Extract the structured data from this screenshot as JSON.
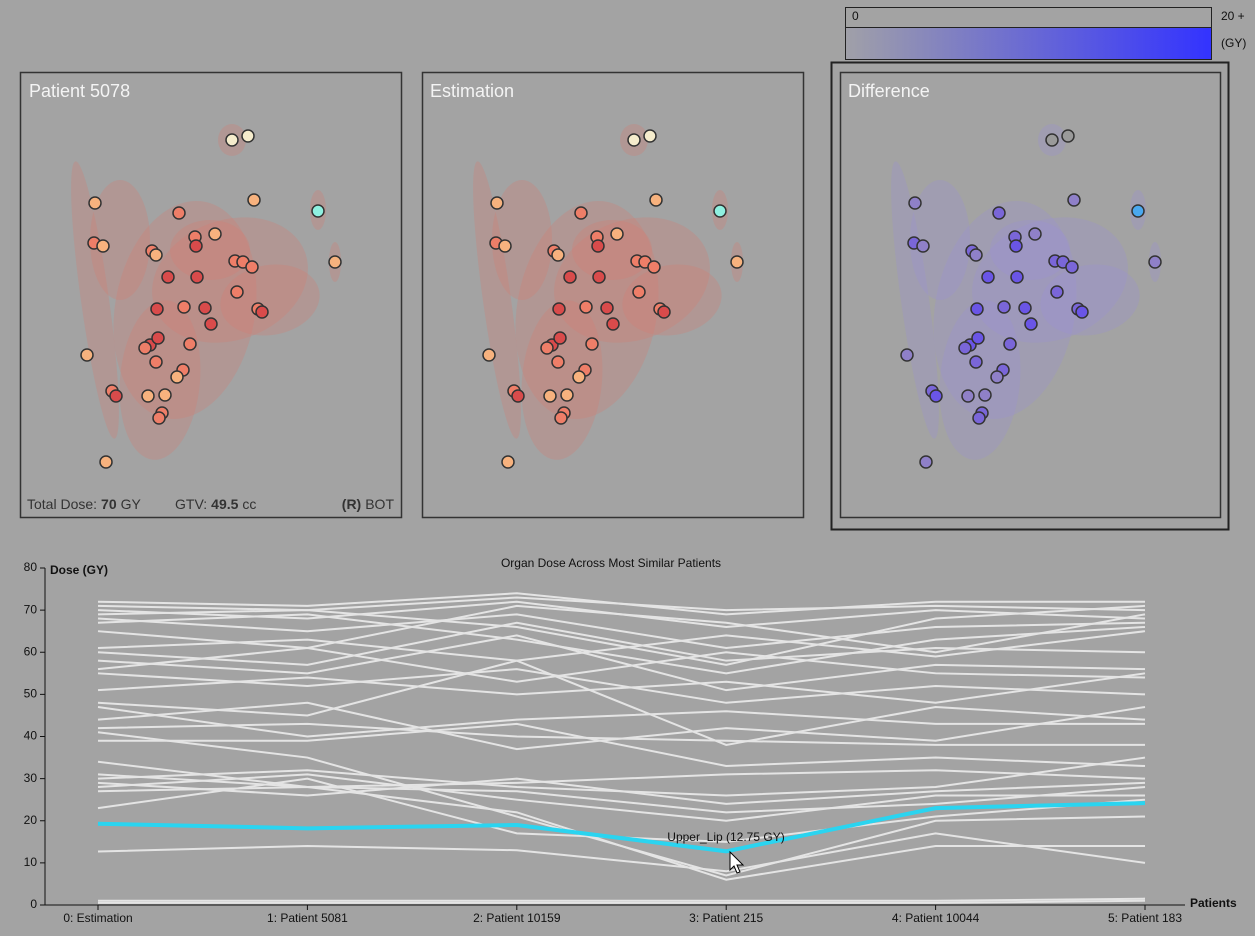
{
  "panels": [
    {
      "title": "Patient 5078"
    },
    {
      "title": "Estimation"
    },
    {
      "title": "Difference"
    }
  ],
  "footer": {
    "total_dose_label": "Total Dose:",
    "total_dose": 70,
    "total_dose_unit": "GY",
    "gtv_label": "GTV:",
    "gtv": 49.5,
    "gtv_unit": "cc",
    "side": "(R)",
    "site": "BOT"
  },
  "colorbar": {
    "min_label": 0,
    "max_label": "20 +",
    "unit": "(GY)"
  },
  "chart_data": {
    "type": "line",
    "title": "Organ Dose Across Most Similar Patients",
    "y_label": "Dose (GY)",
    "x_label": "Patients",
    "categories": [
      "0: Estimation",
      "1: Patient 5081",
      "2: Patient 10159",
      "3: Patient 215",
      "4: Patient 10044",
      "5: Patient 183"
    ],
    "ylim": [
      0,
      80
    ],
    "yticks": [
      0,
      10,
      20,
      30,
      40,
      50,
      60,
      70,
      80
    ],
    "annotation": "Upper_Lip (12.75 GY)",
    "series": [
      {
        "color": "#e4e4e4",
        "values": [
          72,
          71,
          74,
          69,
          72,
          72
        ]
      },
      {
        "color": "#e4e4e4",
        "values": [
          71,
          70,
          73,
          70,
          71,
          70
        ]
      },
      {
        "color": "#e4e4e4",
        "values": [
          70,
          68,
          72,
          66,
          70,
          68
        ]
      },
      {
        "color": "#e4e4e4",
        "values": [
          69,
          70,
          66,
          57,
          68,
          71
        ]
      },
      {
        "color": "#e4e4e4",
        "values": [
          68,
          65,
          69,
          61,
          66,
          67
        ]
      },
      {
        "color": "#e4e4e4",
        "values": [
          67,
          69,
          63,
          55,
          63,
          66
        ]
      },
      {
        "color": "#e4e4e4",
        "values": [
          65,
          61,
          71,
          67,
          60,
          69
        ]
      },
      {
        "color": "#e4e4e4",
        "values": [
          61,
          63,
          58,
          64,
          59,
          65
        ]
      },
      {
        "color": "#e4e4e4",
        "values": [
          60,
          57,
          67,
          58,
          61,
          60
        ]
      },
      {
        "color": "#e4e4e4",
        "values": [
          58,
          55,
          64,
          51,
          57,
          56
        ]
      },
      {
        "color": "#e4e4e4",
        "values": [
          56,
          61,
          53,
          60,
          55,
          54
        ]
      },
      {
        "color": "#e4e4e4",
        "values": [
          55,
          52,
          56,
          48,
          52,
          50
        ]
      },
      {
        "color": "#e4e4e4",
        "values": [
          51,
          54,
          50,
          53,
          48,
          55
        ]
      },
      {
        "color": "#e4e4e4",
        "values": [
          48,
          45,
          58,
          38,
          47,
          44
        ]
      },
      {
        "color": "#e4e4e4",
        "values": [
          47,
          40,
          44,
          46,
          43,
          43
        ]
      },
      {
        "color": "#e4e4e4",
        "values": [
          44,
          48,
          37,
          42,
          39,
          47
        ]
      },
      {
        "color": "#e4e4e4",
        "values": [
          42,
          43,
          40,
          39,
          38,
          38
        ]
      },
      {
        "color": "#e4e4e4",
        "values": [
          39,
          39,
          43,
          33,
          35,
          33
        ]
      },
      {
        "color": "#e4e4e4",
        "values": [
          31,
          28,
          29,
          31,
          32,
          30
        ]
      },
      {
        "color": "#e4e4e4",
        "values": [
          30,
          32,
          28,
          26,
          28,
          35
        ]
      },
      {
        "color": "#e4e4e4",
        "values": [
          29,
          26,
          30,
          24,
          27,
          29
        ]
      },
      {
        "color": "#e4e4e4",
        "values": [
          28,
          31,
          25,
          20,
          26,
          26
        ]
      },
      {
        "color": "#e4e4e4",
        "values": [
          27,
          28,
          27,
          22,
          24,
          28
        ]
      },
      {
        "color": "#e4e4e4",
        "values": [
          23,
          30,
          17,
          15,
          21,
          25
        ]
      },
      {
        "color": "#e4e4e4",
        "values": [
          12.7,
          14,
          13,
          8,
          17,
          10
        ]
      },
      {
        "color": "#e4e4e4",
        "values": [
          41,
          35,
          21,
          7,
          20,
          21
        ]
      },
      {
        "color": "#e4e4e4",
        "values": [
          34,
          28,
          22,
          6,
          14,
          14
        ]
      },
      {
        "color": "#e4e4e4",
        "values": [
          1,
          1,
          1,
          1,
          1,
          1.5
        ]
      },
      {
        "color": "#e4e4e4",
        "values": [
          0.5,
          0.5,
          0.5,
          0.5,
          0.5,
          1
        ]
      },
      {
        "name": "Upper_Lip",
        "color": "#2ad4f0",
        "width": 4,
        "values": [
          19.3,
          18.2,
          19,
          12.75,
          23,
          24.2
        ]
      }
    ]
  }
}
